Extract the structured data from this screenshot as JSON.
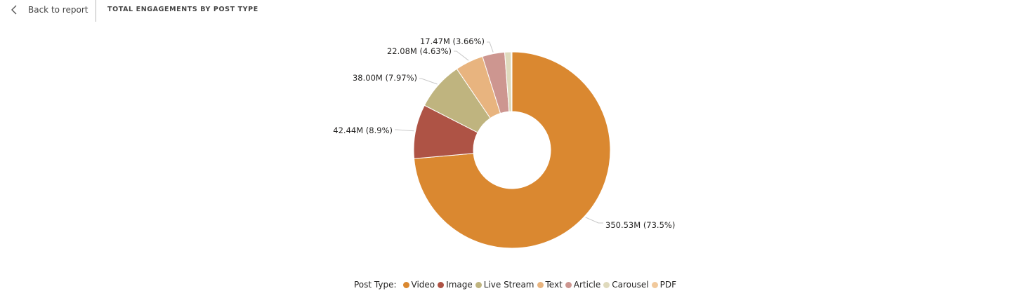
{
  "header": {
    "back_label": "Back to report",
    "title": "TOTAL ENGAGEMENTS BY POST TYPE"
  },
  "legend": {
    "title": "Post Type:"
  },
  "chart_data": {
    "type": "pie",
    "donut": true,
    "title": "TOTAL ENGAGEMENTS BY POST TYPE",
    "legend_title": "Post Type:",
    "legend_position": "bottom-center",
    "unit": "M",
    "categories": [
      "Video",
      "Image",
      "Live Stream",
      "Text",
      "Article",
      "Carousel",
      "PDF"
    ],
    "values": [
      350.53,
      42.44,
      38.0,
      22.08,
      17.47,
      5.07,
      0.6
    ],
    "labels": [
      "350.53M (73.5%)",
      "42.44M (8.9%)",
      "38.00M (7.97%)",
      "22.08M (4.63%)",
      "17.47M (3.66%)",
      null,
      null
    ],
    "colors": [
      "#DA8830",
      "#AE5345",
      "#BFB47F",
      "#E8B47F",
      "#CD9690",
      "#DFDABD",
      "#F1C99C"
    ]
  }
}
